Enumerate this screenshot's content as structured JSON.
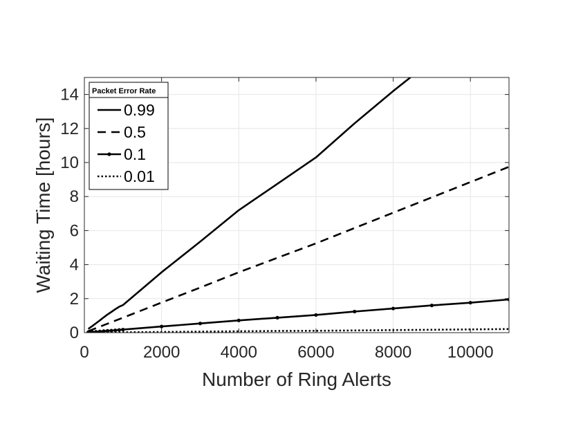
{
  "chart_data": {
    "type": "line",
    "xlabel": "Number of Ring Alerts",
    "ylabel": "Waiting Time [hours]",
    "xlim": [
      0,
      11000
    ],
    "ylim": [
      0,
      15
    ],
    "xticks": [
      0,
      2000,
      4000,
      6000,
      8000,
      10000
    ],
    "yticks": [
      0,
      2,
      4,
      6,
      8,
      10,
      12,
      14
    ],
    "grid": true,
    "legend": {
      "title": "Packet Error Rate",
      "placement": "top-left"
    },
    "series": [
      {
        "name": "0.99",
        "style": "solid",
        "x": [
          100,
          200,
          300,
          400,
          500,
          600,
          700,
          800,
          900,
          1000,
          2000,
          3000,
          4000,
          5000,
          6000,
          7000,
          8000,
          8500
        ],
        "y": [
          0.22,
          0.38,
          0.55,
          0.72,
          0.9,
          1.07,
          1.22,
          1.38,
          1.52,
          1.62,
          3.55,
          5.35,
          7.2,
          8.75,
          10.3,
          12.3,
          14.2,
          15.1
        ]
      },
      {
        "name": "0.5",
        "style": "dashed",
        "x": [
          100,
          500,
          1000,
          2000,
          3000,
          4000,
          5000,
          6000,
          7000,
          8000,
          9000,
          10000,
          11000
        ],
        "y": [
          0.09,
          0.44,
          0.88,
          1.77,
          2.65,
          3.55,
          4.4,
          5.25,
          6.15,
          7.05,
          7.95,
          8.85,
          9.75
        ]
      },
      {
        "name": "0.1",
        "style": "solid-marker",
        "x": [
          100,
          200,
          300,
          400,
          500,
          600,
          700,
          800,
          900,
          1000,
          2000,
          3000,
          4000,
          5000,
          6000,
          7000,
          8000,
          9000,
          10000,
          11000
        ],
        "y": [
          0.02,
          0.04,
          0.05,
          0.07,
          0.09,
          0.11,
          0.12,
          0.14,
          0.16,
          0.18,
          0.36,
          0.54,
          0.72,
          0.88,
          1.04,
          1.24,
          1.42,
          1.6,
          1.76,
          1.95
        ]
      },
      {
        "name": "0.01",
        "style": "dotted",
        "x": [
          100,
          1000,
          2000,
          3000,
          4000,
          5000,
          6000,
          7000,
          8000,
          9000,
          10000,
          11000
        ],
        "y": [
          0.0,
          0.02,
          0.04,
          0.06,
          0.08,
          0.1,
          0.11,
          0.13,
          0.15,
          0.17,
          0.19,
          0.21
        ]
      }
    ]
  }
}
